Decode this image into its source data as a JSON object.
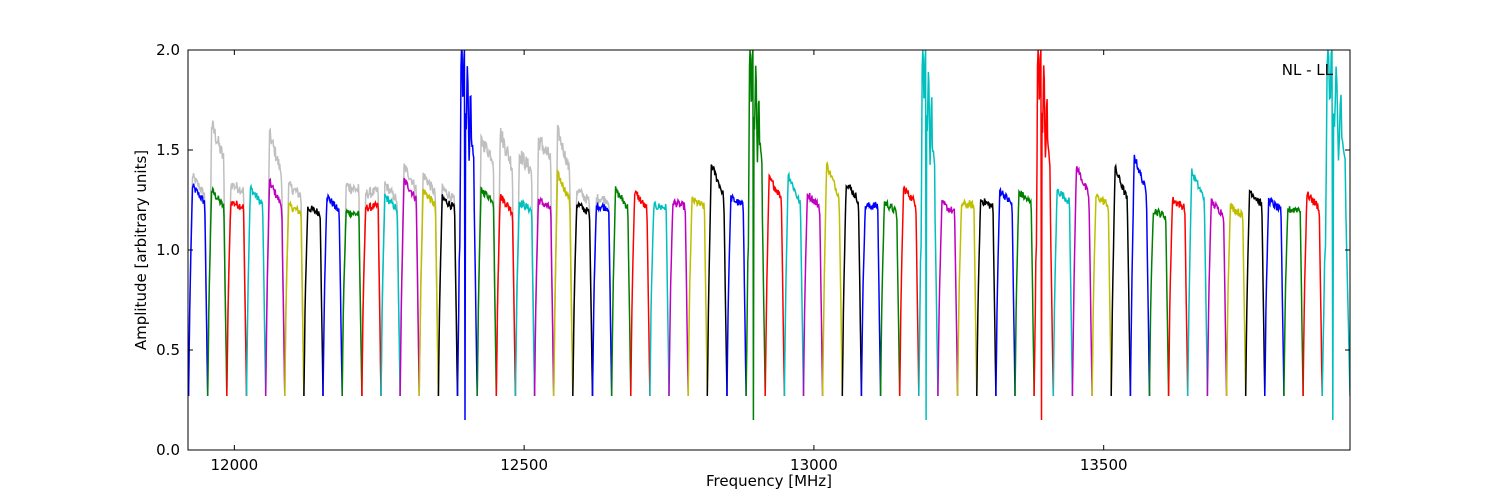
{
  "chart_data": {
    "type": "line",
    "title": "",
    "xlabel": "Frequency [MHz]",
    "ylabel": "Amplitude [arbitrary units]",
    "annotation": "NL - LL",
    "annotation_placement": "top-right",
    "xlim": [
      11920,
      13925
    ],
    "ylim": [
      0.0,
      2.0
    ],
    "x_ticks": [
      12000,
      12500,
      13000,
      13500
    ],
    "x_tick_labels": [
      "12000",
      "12500",
      "13000",
      "13500"
    ],
    "y_ticks": [
      0.0,
      0.5,
      1.0,
      1.5,
      2.0
    ],
    "y_tick_labels": [
      "0.0",
      "0.5",
      "1.0",
      "1.5",
      "2.0"
    ],
    "grid": false,
    "background_trace_color": "#bfbfbf",
    "series_colors": [
      "#0000ff",
      "#008000",
      "#ff0000",
      "#00bfbf",
      "#bf00bf",
      "#bfbf00",
      "#000000"
    ],
    "bands": [
      {
        "x0": 11921,
        "x1": 11954,
        "peak": 1.32,
        "bg": 1.37
      },
      {
        "x0": 11954,
        "x1": 11987,
        "peak": 1.3,
        "bg": 1.63
      },
      {
        "x0": 11987,
        "x1": 12021,
        "peak": 1.24,
        "bg": 1.33
      },
      {
        "x0": 12021,
        "x1": 12054,
        "peak": 1.31,
        "bg": 1.3
      },
      {
        "x0": 12054,
        "x1": 12087,
        "peak": 1.34,
        "bg": 1.58
      },
      {
        "x0": 12087,
        "x1": 12120,
        "peak": 1.22,
        "bg": 1.32
      },
      {
        "x0": 12120,
        "x1": 12153,
        "peak": 1.21,
        "bg": 1.22
      },
      {
        "x0": 12153,
        "x1": 12186,
        "peak": 1.27,
        "bg": 1.28
      },
      {
        "x0": 12186,
        "x1": 12220,
        "peak": 1.19,
        "bg": 1.32
      },
      {
        "x0": 12220,
        "x1": 12253,
        "peak": 1.21,
        "bg": 1.28
      },
      {
        "x0": 12253,
        "x1": 12286,
        "peak": 1.27,
        "bg": 1.33
      },
      {
        "x0": 12286,
        "x1": 12319,
        "peak": 1.35,
        "bg": 1.42
      },
      {
        "x0": 12319,
        "x1": 12352,
        "peak": 1.3,
        "bg": 1.38
      },
      {
        "x0": 12352,
        "x1": 12385,
        "peak": 1.26,
        "bg": 1.31
      },
      {
        "x0": 12385,
        "x1": 12419,
        "peak": 2.0,
        "bg": 1.4,
        "spike": true
      },
      {
        "x0": 12419,
        "x1": 12452,
        "peak": 1.3,
        "bg": 1.55
      },
      {
        "x0": 12452,
        "x1": 12485,
        "peak": 1.27,
        "bg": 1.59
      },
      {
        "x0": 12485,
        "x1": 12518,
        "peak": 1.24,
        "bg": 1.48
      },
      {
        "x0": 12518,
        "x1": 12551,
        "peak": 1.25,
        "bg": 1.55
      },
      {
        "x0": 12551,
        "x1": 12584,
        "peak": 1.38,
        "bg": 1.6
      },
      {
        "x0": 12584,
        "x1": 12618,
        "peak": 1.23,
        "bg": 1.3
      },
      {
        "x0": 12618,
        "x1": 12651,
        "peak": 1.22,
        "bg": 1.26
      },
      {
        "x0": 12651,
        "x1": 12684,
        "peak": 1.3,
        "bg": 1.3
      },
      {
        "x0": 12684,
        "x1": 12717,
        "peak": 1.29,
        "bg": 1.29
      },
      {
        "x0": 12717,
        "x1": 12750,
        "peak": 1.22,
        "bg": 1.22
      },
      {
        "x0": 12750,
        "x1": 12783,
        "peak": 1.24,
        "bg": 1.24
      },
      {
        "x0": 12783,
        "x1": 12816,
        "peak": 1.25,
        "bg": 1.25
      },
      {
        "x0": 12816,
        "x1": 12850,
        "peak": 1.43,
        "bg": 1.43
      },
      {
        "x0": 12850,
        "x1": 12883,
        "peak": 1.26,
        "bg": 1.26
      },
      {
        "x0": 12883,
        "x1": 12916,
        "peak": 2.0,
        "bg": 1.22,
        "spike": true
      },
      {
        "x0": 12916,
        "x1": 12949,
        "peak": 1.36,
        "bg": 1.36
      },
      {
        "x0": 12949,
        "x1": 12982,
        "peak": 1.38,
        "bg": 1.38
      },
      {
        "x0": 12982,
        "x1": 13015,
        "peak": 1.28,
        "bg": 1.28
      },
      {
        "x0": 13015,
        "x1": 13049,
        "peak": 1.43,
        "bg": 1.43
      },
      {
        "x0": 13049,
        "x1": 13082,
        "peak": 1.34,
        "bg": 1.34
      },
      {
        "x0": 13082,
        "x1": 13115,
        "peak": 1.22,
        "bg": 1.22
      },
      {
        "x0": 13115,
        "x1": 13148,
        "peak": 1.24,
        "bg": 1.24
      },
      {
        "x0": 13148,
        "x1": 13181,
        "peak": 1.31,
        "bg": 1.31
      },
      {
        "x0": 13181,
        "x1": 13214,
        "peak": 2.0,
        "bg": 1.26,
        "spike": true
      },
      {
        "x0": 13214,
        "x1": 13248,
        "peak": 1.23,
        "bg": 1.23
      },
      {
        "x0": 13248,
        "x1": 13281,
        "peak": 1.23,
        "bg": 1.23
      },
      {
        "x0": 13281,
        "x1": 13314,
        "peak": 1.25,
        "bg": 1.25
      },
      {
        "x0": 13314,
        "x1": 13347,
        "peak": 1.3,
        "bg": 1.3
      },
      {
        "x0": 13347,
        "x1": 13380,
        "peak": 1.29,
        "bg": 1.29
      },
      {
        "x0": 13380,
        "x1": 13413,
        "peak": 2.0,
        "bg": 1.25,
        "spike": true
      },
      {
        "x0": 13413,
        "x1": 13446,
        "peak": 1.3,
        "bg": 1.3
      },
      {
        "x0": 13446,
        "x1": 13480,
        "peak": 1.42,
        "bg": 1.42
      },
      {
        "x0": 13480,
        "x1": 13513,
        "peak": 1.27,
        "bg": 1.27
      },
      {
        "x0": 13513,
        "x1": 13546,
        "peak": 1.41,
        "bg": 1.41
      },
      {
        "x0": 13546,
        "x1": 13579,
        "peak": 1.47,
        "bg": 1.47
      },
      {
        "x0": 13579,
        "x1": 13612,
        "peak": 1.2,
        "bg": 1.2
      },
      {
        "x0": 13612,
        "x1": 13645,
        "peak": 1.25,
        "bg": 1.25
      },
      {
        "x0": 13645,
        "x1": 13679,
        "peak": 1.39,
        "bg": 1.41
      },
      {
        "x0": 13679,
        "x1": 13712,
        "peak": 1.24,
        "bg": 1.24
      },
      {
        "x0": 13712,
        "x1": 13745,
        "peak": 1.22,
        "bg": 1.22
      },
      {
        "x0": 13745,
        "x1": 13778,
        "peak": 1.3,
        "bg": 1.3
      },
      {
        "x0": 13778,
        "x1": 13811,
        "peak": 1.25,
        "bg": 1.25
      },
      {
        "x0": 13811,
        "x1": 13844,
        "peak": 1.2,
        "bg": 1.2
      },
      {
        "x0": 13844,
        "x1": 13877,
        "peak": 1.28,
        "bg": 1.28
      },
      {
        "x0": 13877,
        "x1": 13925,
        "peak": 2.0,
        "bg": 1.56,
        "spike": true
      }
    ]
  }
}
